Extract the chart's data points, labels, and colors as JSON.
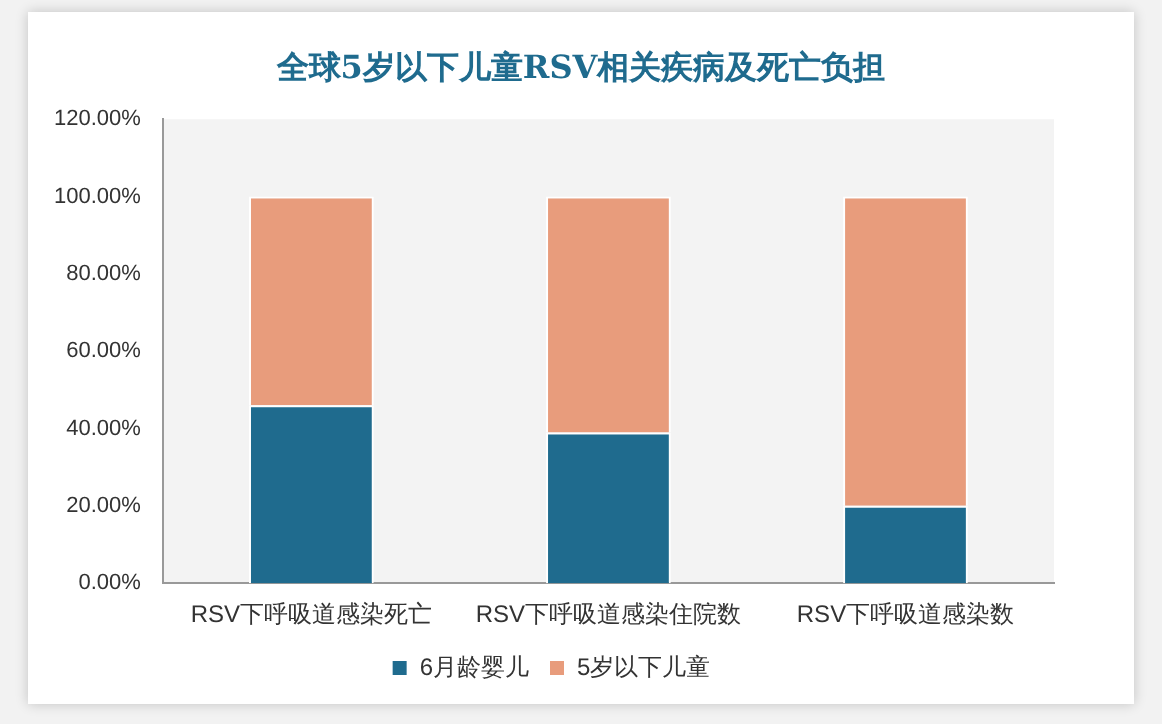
{
  "chart_data": {
    "type": "bar",
    "title": "全球5岁以下儿童RSV相关疾病及死亡负担",
    "categories": [
      "RSV下呼吸道感染死亡",
      "RSV下呼吸道感染住院数",
      "RSV下呼吸道感染数"
    ],
    "series": [
      {
        "name": "6月龄婴儿",
        "color": "#1f6b8e",
        "values": [
          46,
          39,
          20
        ]
      },
      {
        "name": "5岁以下儿童",
        "color": "#e89c7c",
        "values": [
          54,
          61,
          80
        ]
      }
    ],
    "stacked": true,
    "ylim": [
      0,
      120
    ],
    "yticks": [
      {
        "value": 0,
        "label": "0.00%"
      },
      {
        "value": 20,
        "label": "20.00%"
      },
      {
        "value": 40,
        "label": "40.00%"
      },
      {
        "value": 60,
        "label": "60.00%"
      },
      {
        "value": 80,
        "label": "80.00%"
      },
      {
        "value": 100,
        "label": "100.00%"
      },
      {
        "value": 120,
        "label": "120.00%"
      }
    ],
    "grid": false,
    "legend": "bottom"
  }
}
